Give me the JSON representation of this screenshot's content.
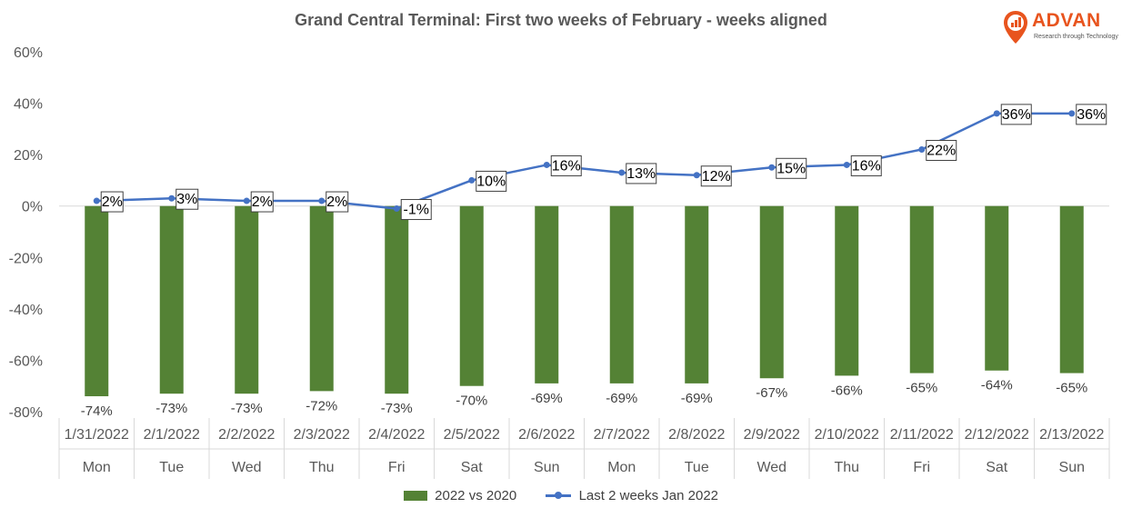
{
  "chart_data": {
    "type": "bar+line",
    "title": "Grand Central Terminal:  First two weeks of February - weeks aligned",
    "ylim": [
      -80,
      60
    ],
    "yticks": [
      "60%",
      "40%",
      "20%",
      "0%",
      "-20%",
      "-40%",
      "-60%",
      "-80%"
    ],
    "ytick_values": [
      60,
      40,
      20,
      0,
      -20,
      -40,
      -60,
      -80
    ],
    "categories": [
      "1/31/2022",
      "2/1/2022",
      "2/2/2022",
      "2/3/2022",
      "2/4/2022",
      "2/5/2022",
      "2/6/2022",
      "2/7/2022",
      "2/8/2022",
      "2/9/2022",
      "2/10/2022",
      "2/11/2022",
      "2/12/2022",
      "2/13/2022"
    ],
    "weekdays": [
      "Mon",
      "Tue",
      "Wed",
      "Thu",
      "Fri",
      "Sat",
      "Sun",
      "Mon",
      "Tue",
      "Wed",
      "Thu",
      "Fri",
      "Sat",
      "Sun"
    ],
    "series": [
      {
        "name": "2022 vs 2020",
        "kind": "bar",
        "color": "#548235",
        "values": [
          -74,
          -73,
          -73,
          -72,
          -73,
          -70,
          -69,
          -69,
          -69,
          -67,
          -66,
          -65,
          -64,
          -65
        ],
        "labels": [
          "-74%",
          "-73%",
          "-73%",
          "-72%",
          "-73%",
          "-70%",
          "-69%",
          "-69%",
          "-69%",
          "-67%",
          "-66%",
          "-65%",
          "-64%",
          "-65%"
        ]
      },
      {
        "name": "Last 2 weeks Jan 2022",
        "kind": "line",
        "color": "#4472c4",
        "values": [
          2,
          3,
          2,
          2,
          -1,
          10,
          16,
          13,
          12,
          15,
          16,
          22,
          36,
          36
        ],
        "labels": [
          "2%",
          "3%",
          "2%",
          "2%",
          "-1%",
          "10%",
          "16%",
          "13%",
          "12%",
          "15%",
          "16%",
          "22%",
          "36%",
          "36%"
        ]
      }
    ],
    "legend_position": "bottom"
  },
  "logo": {
    "word": "ADVAN",
    "tagline": "Research through Technology",
    "color": "#e8541e"
  }
}
